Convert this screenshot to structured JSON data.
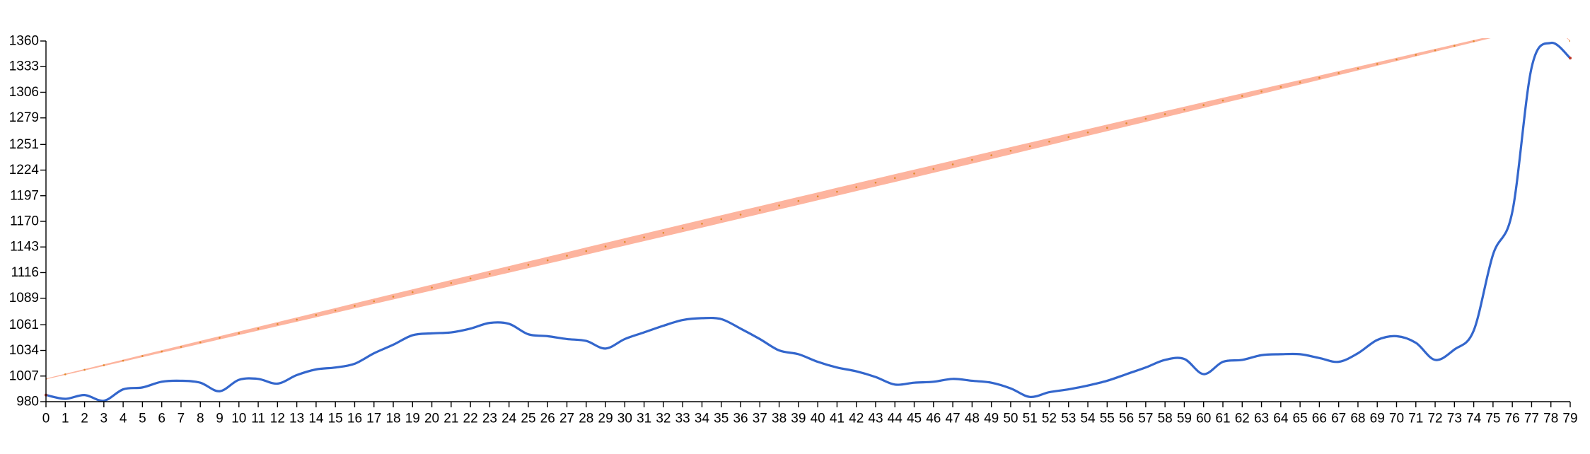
{
  "chart_data": {
    "type": "line",
    "title": "",
    "xlabel": "",
    "ylabel": "",
    "x": [
      0,
      1,
      2,
      3,
      4,
      5,
      6,
      7,
      8,
      9,
      10,
      11,
      12,
      13,
      14,
      15,
      16,
      17,
      18,
      19,
      20,
      21,
      22,
      23,
      24,
      25,
      26,
      27,
      28,
      29,
      30,
      31,
      32,
      33,
      34,
      35,
      36,
      37,
      38,
      39,
      40,
      41,
      42,
      43,
      44,
      45,
      46,
      47,
      48,
      49,
      50,
      51,
      52,
      53,
      54,
      55,
      56,
      57,
      58,
      59,
      60,
      61,
      62,
      63,
      64,
      65,
      66,
      67,
      68,
      69,
      70,
      71,
      72,
      73,
      74,
      75,
      76,
      77,
      78,
      79
    ],
    "xlim": [
      0,
      79
    ],
    "ylim": [
      980,
      1360
    ],
    "y_ticks": [
      980,
      1007,
      1034,
      1061,
      1089,
      1116,
      1143,
      1170,
      1197,
      1224,
      1251,
      1279,
      1306,
      1333,
      1360
    ],
    "x_ticks": [
      0,
      1,
      2,
      3,
      4,
      5,
      6,
      7,
      8,
      9,
      10,
      11,
      12,
      13,
      14,
      15,
      16,
      17,
      18,
      19,
      20,
      21,
      22,
      23,
      24,
      25,
      26,
      27,
      28,
      29,
      30,
      31,
      32,
      33,
      34,
      35,
      36,
      37,
      38,
      39,
      40,
      41,
      42,
      43,
      44,
      45,
      46,
      47,
      48,
      49,
      50,
      51,
      52,
      53,
      54,
      55,
      56,
      57,
      58,
      59,
      60,
      61,
      62,
      63,
      64,
      65,
      66,
      67,
      68,
      69,
      70,
      71,
      72,
      73,
      74,
      75,
      76,
      77,
      78,
      79
    ],
    "grid": false,
    "legend": "none",
    "series": [
      {
        "values": [
          987,
          983,
          987,
          981,
          993,
          995,
          1001,
          1002,
          1000,
          991,
          1003,
          1004,
          999,
          1008,
          1014,
          1016,
          1020,
          1031,
          1040,
          1050,
          1052,
          1053,
          1057,
          1063,
          1062,
          1051,
          1049,
          1046,
          1044,
          1036,
          1046,
          1053,
          1060,
          1066,
          1068,
          1067,
          1057,
          1046,
          1034,
          1030,
          1022,
          1016,
          1012,
          1006,
          998,
          1000,
          1001,
          1004,
          1002,
          1000,
          994,
          985,
          990,
          993,
          997,
          1002,
          1009,
          1016,
          1024,
          1025,
          1009,
          1022,
          1024,
          1029,
          1030,
          1030,
          1026,
          1022,
          1031,
          1045,
          1049,
          1042,
          1024,
          1035,
          1055,
          1135,
          1180,
          1332,
          1358,
          1342
        ],
        "color": "#3366cc",
        "style": "line"
      },
      {
        "values": [
          1004,
          1008.8,
          1013.6,
          1018.4,
          1023.2,
          1028.1,
          1032.9,
          1037.7,
          1042.5,
          1047.3,
          1052.1,
          1056.9,
          1061.7,
          1066.5,
          1071.3,
          1076.1,
          1081,
          1085.8,
          1090.6,
          1095.4,
          1100.2,
          1105,
          1109.8,
          1114.6,
          1119.4,
          1124.2,
          1129,
          1133.8,
          1138.7,
          1143.5,
          1148.3,
          1153.1,
          1157.9,
          1162.7,
          1167.5,
          1172.3,
          1177.1,
          1181.9,
          1186.7,
          1191.5,
          1196.3,
          1201.2,
          1206,
          1210.8,
          1215.6,
          1220.4,
          1225.2,
          1230,
          1234.8,
          1239.6,
          1244.4,
          1249.2,
          1254,
          1258.9,
          1263.7,
          1268.5,
          1273.3,
          1278.1,
          1282.9,
          1287.7,
          1292.5,
          1297.3,
          1302.1,
          1306.9,
          1311.7,
          1316.5,
          1321.3,
          1326.2,
          1331,
          1335.8,
          1340.6,
          1345.4,
          1350.2,
          1355,
          1359.8,
          1364.6,
          1369.4,
          1374.2,
          1379,
          1360
        ],
        "band_width": 10,
        "color": "#fdb49e",
        "point_color": "#e08a2a",
        "style": "band"
      }
    ]
  }
}
